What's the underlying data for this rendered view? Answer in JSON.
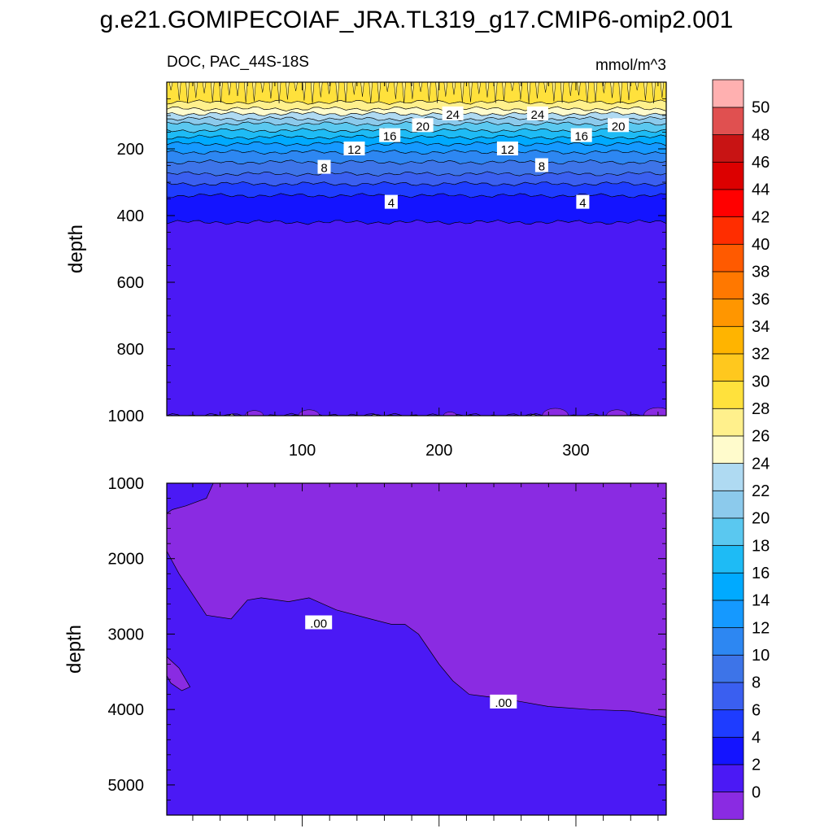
{
  "figure": {
    "title": "g.e21.GOMIPECOIAF_JRA.TL319_g17.CMIP6-omip2.001"
  },
  "chart_data": [
    {
      "type": "heatmap",
      "panel": "upper",
      "title": "DOC, PAC_44S-18S",
      "units": "mmol/m^3",
      "xlabel": "",
      "ylabel": "depth",
      "xlim": [
        1,
        366
      ],
      "ylim": [
        1000,
        0
      ],
      "x_ticks": [
        100,
        200,
        300
      ],
      "y_ticks": [
        200,
        400,
        600,
        800,
        1000
      ],
      "contour_levels": [
        24,
        20,
        16,
        12,
        8,
        4
      ],
      "contour_labels": [
        {
          "text": "24",
          "x": 210,
          "y": 95
        },
        {
          "text": "24",
          "x": 272,
          "y": 95
        },
        {
          "text": "20",
          "x": 188,
          "y": 130
        },
        {
          "text": "20",
          "x": 331,
          "y": 130
        },
        {
          "text": "16",
          "x": 164,
          "y": 160
        },
        {
          "text": "16",
          "x": 304,
          "y": 160
        },
        {
          "text": "12",
          "x": 138,
          "y": 200
        },
        {
          "text": "12",
          "x": 250,
          "y": 200
        },
        {
          "text": "8",
          "x": 116,
          "y": 255
        },
        {
          "text": "8",
          "x": 275,
          "y": 250
        },
        {
          "text": "4",
          "x": 165,
          "y": 360
        },
        {
          "text": "4",
          "x": 305,
          "y": 360
        }
      ],
      "profile": [
        {
          "depth": 0,
          "value": 28.5
        },
        {
          "depth": 60,
          "value": 27.5
        },
        {
          "depth": 80,
          "value": 25
        },
        {
          "depth": 95,
          "value": 23.5
        },
        {
          "depth": 110,
          "value": 21.5
        },
        {
          "depth": 125,
          "value": 19.5
        },
        {
          "depth": 145,
          "value": 17.5
        },
        {
          "depth": 165,
          "value": 15.5
        },
        {
          "depth": 185,
          "value": 13.5
        },
        {
          "depth": 210,
          "value": 11.5
        },
        {
          "depth": 240,
          "value": 9.5
        },
        {
          "depth": 275,
          "value": 7.5
        },
        {
          "depth": 305,
          "value": 5.5
        },
        {
          "depth": 340,
          "value": 3.5
        },
        {
          "depth": 420,
          "value": 1.5
        },
        {
          "depth": 1000,
          "value": 0.5
        }
      ]
    },
    {
      "type": "heatmap",
      "panel": "lower",
      "title": "",
      "xlabel": "",
      "ylabel": "depth",
      "xlim": [
        1,
        366
      ],
      "ylim": [
        5400,
        1000
      ],
      "y_ticks": [
        1000,
        2000,
        3000,
        4000,
        5000
      ],
      "contour_labels": [
        {
          "text": ".00",
          "x": 112,
          "y": 2850
        },
        {
          "text": ".00",
          "x": 247,
          "y": 3900
        }
      ],
      "zero_contour": [
        {
          "x": 1,
          "depth": 1900
        },
        {
          "x": 10,
          "depth": 2200
        },
        {
          "x": 30,
          "depth": 2750
        },
        {
          "x": 48,
          "depth": 2800
        },
        {
          "x": 60,
          "depth": 2550
        },
        {
          "x": 70,
          "depth": 2520
        },
        {
          "x": 90,
          "depth": 2570
        },
        {
          "x": 105,
          "depth": 2520
        },
        {
          "x": 125,
          "depth": 2680
        },
        {
          "x": 150,
          "depth": 2800
        },
        {
          "x": 165,
          "depth": 2870
        },
        {
          "x": 175,
          "depth": 2870
        },
        {
          "x": 185,
          "depth": 3000
        },
        {
          "x": 200,
          "depth": 3400
        },
        {
          "x": 210,
          "depth": 3620
        },
        {
          "x": 222,
          "depth": 3800
        },
        {
          "x": 235,
          "depth": 3830
        },
        {
          "x": 255,
          "depth": 3880
        },
        {
          "x": 280,
          "depth": 3960
        },
        {
          "x": 310,
          "depth": 4000
        },
        {
          "x": 340,
          "depth": 4020
        },
        {
          "x": 366,
          "depth": 4100
        }
      ],
      "shallow_patch": [
        {
          "x": 1,
          "depth": 1000
        },
        {
          "x": 35,
          "depth": 1000
        },
        {
          "x": 30,
          "depth": 1200
        },
        {
          "x": 15,
          "depth": 1300
        },
        {
          "x": 5,
          "depth": 1350
        },
        {
          "x": 1,
          "depth": 1400
        }
      ],
      "left_patch": [
        {
          "x": 1,
          "depth": 3300
        },
        {
          "x": 10,
          "depth": 3450
        },
        {
          "x": 18,
          "depth": 3700
        },
        {
          "x": 12,
          "depth": 3750
        },
        {
          "x": 4,
          "depth": 3650
        },
        {
          "x": 1,
          "depth": 3550
        }
      ]
    }
  ],
  "colorbar": {
    "labels": [
      "50",
      "48",
      "46",
      "44",
      "42",
      "40",
      "38",
      "36",
      "34",
      "32",
      "30",
      "28",
      "26",
      "24",
      "22",
      "20",
      "18",
      "16",
      "14",
      "12",
      "10",
      "8",
      "6",
      "4",
      "2",
      "0"
    ],
    "colors": [
      "#8a2be2",
      "#4b19f5",
      "#1414ff",
      "#1e3cff",
      "#3a5ff0",
      "#3d74e8",
      "#2d87f2",
      "#1599ff",
      "#00aaff",
      "#1ebbf5",
      "#5ac8f0",
      "#8ccaec",
      "#afdaf2",
      "#fffbcc",
      "#fff08c",
      "#ffe13c",
      "#ffc81e",
      "#ffb400",
      "#ff9600",
      "#ff7800",
      "#ff5a00",
      "#ff2d00",
      "#ff0000",
      "#dc0000",
      "#c81414",
      "#e05050",
      "#ffb0b0"
    ]
  }
}
